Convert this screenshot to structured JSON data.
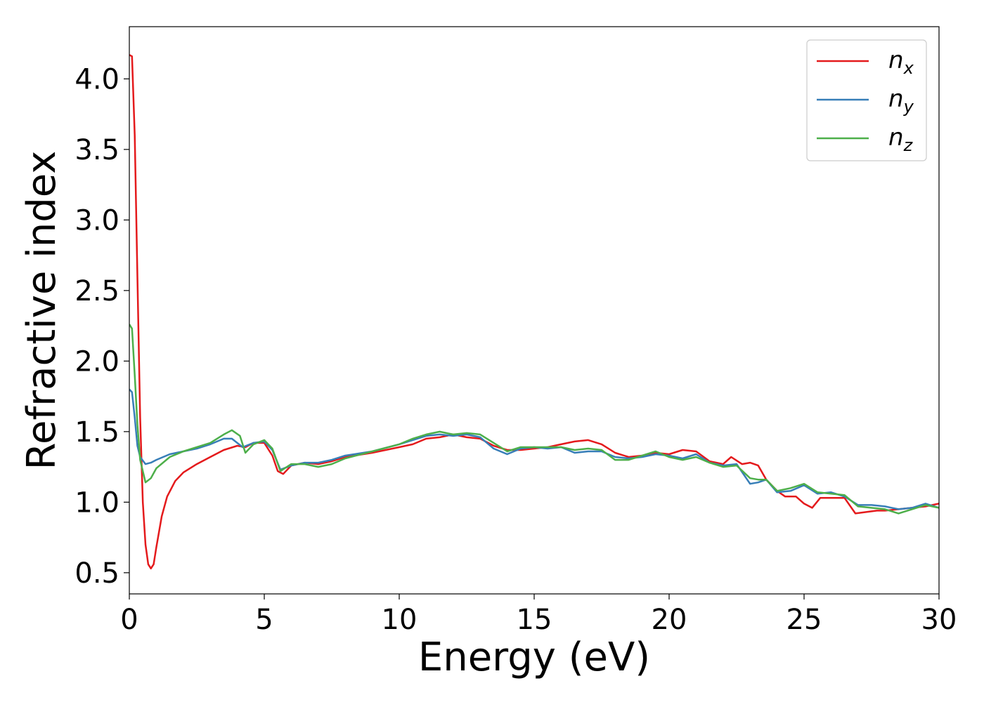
{
  "chart_data": {
    "type": "line",
    "title": "",
    "xlabel": "Energy (eV)",
    "ylabel": "Refractive index",
    "xlim": [
      0,
      30
    ],
    "ylim": [
      0.35,
      4.37
    ],
    "xticks": [
      0,
      5,
      10,
      15,
      20,
      25,
      30
    ],
    "yticks": [
      0.5,
      1.0,
      1.5,
      2.0,
      2.5,
      3.0,
      3.5,
      4.0
    ],
    "grid": false,
    "legend_position": "top-right",
    "series": [
      {
        "name": "n",
        "subscript": "x",
        "color": "#e41a1c",
        "points": [
          [
            0,
            4.17
          ],
          [
            0.1,
            4.16
          ],
          [
            0.2,
            3.6
          ],
          [
            0.3,
            2.6
          ],
          [
            0.4,
            1.6
          ],
          [
            0.5,
            1.0
          ],
          [
            0.6,
            0.7
          ],
          [
            0.7,
            0.56
          ],
          [
            0.8,
            0.53
          ],
          [
            0.9,
            0.56
          ],
          [
            1.0,
            0.68
          ],
          [
            1.2,
            0.9
          ],
          [
            1.4,
            1.04
          ],
          [
            1.7,
            1.15
          ],
          [
            2.0,
            1.21
          ],
          [
            2.5,
            1.27
          ],
          [
            3.0,
            1.32
          ],
          [
            3.5,
            1.37
          ],
          [
            4.0,
            1.4
          ],
          [
            4.3,
            1.39
          ],
          [
            4.6,
            1.42
          ],
          [
            5.0,
            1.42
          ],
          [
            5.3,
            1.33
          ],
          [
            5.5,
            1.22
          ],
          [
            5.7,
            1.2
          ],
          [
            6.0,
            1.26
          ],
          [
            6.5,
            1.28
          ],
          [
            7.0,
            1.27
          ],
          [
            7.5,
            1.29
          ],
          [
            8.0,
            1.32
          ],
          [
            9.0,
            1.35
          ],
          [
            10.0,
            1.39
          ],
          [
            10.5,
            1.41
          ],
          [
            11.0,
            1.45
          ],
          [
            11.5,
            1.46
          ],
          [
            12.0,
            1.48
          ],
          [
            12.5,
            1.46
          ],
          [
            13.0,
            1.45
          ],
          [
            13.5,
            1.4
          ],
          [
            14.0,
            1.37
          ],
          [
            14.5,
            1.37
          ],
          [
            15.0,
            1.38
          ],
          [
            15.5,
            1.39
          ],
          [
            16.0,
            1.41
          ],
          [
            16.5,
            1.43
          ],
          [
            17.0,
            1.44
          ],
          [
            17.5,
            1.41
          ],
          [
            18.0,
            1.35
          ],
          [
            18.5,
            1.32
          ],
          [
            19.0,
            1.33
          ],
          [
            19.5,
            1.35
          ],
          [
            20.0,
            1.34
          ],
          [
            20.5,
            1.37
          ],
          [
            21.0,
            1.36
          ],
          [
            21.5,
            1.29
          ],
          [
            22.0,
            1.27
          ],
          [
            22.3,
            1.32
          ],
          [
            22.7,
            1.27
          ],
          [
            23.0,
            1.28
          ],
          [
            23.3,
            1.26
          ],
          [
            23.6,
            1.16
          ],
          [
            24.0,
            1.08
          ],
          [
            24.3,
            1.04
          ],
          [
            24.7,
            1.04
          ],
          [
            25.0,
            0.99
          ],
          [
            25.3,
            0.96
          ],
          [
            25.6,
            1.03
          ],
          [
            26.0,
            1.03
          ],
          [
            26.5,
            1.03
          ],
          [
            26.9,
            0.92
          ],
          [
            27.3,
            0.93
          ],
          [
            27.7,
            0.94
          ],
          [
            28.0,
            0.94
          ],
          [
            28.5,
            0.95
          ],
          [
            29.0,
            0.96
          ],
          [
            29.5,
            0.97
          ],
          [
            30.0,
            0.99
          ]
        ]
      },
      {
        "name": "n",
        "subscript": "y",
        "color": "#377eb8",
        "points": [
          [
            0,
            1.8
          ],
          [
            0.1,
            1.78
          ],
          [
            0.2,
            1.6
          ],
          [
            0.3,
            1.4
          ],
          [
            0.4,
            1.32
          ],
          [
            0.6,
            1.27
          ],
          [
            0.8,
            1.28
          ],
          [
            1.0,
            1.3
          ],
          [
            1.5,
            1.34
          ],
          [
            2.0,
            1.36
          ],
          [
            2.5,
            1.38
          ],
          [
            3.0,
            1.41
          ],
          [
            3.5,
            1.45
          ],
          [
            3.8,
            1.45
          ],
          [
            4.2,
            1.39
          ],
          [
            4.6,
            1.42
          ],
          [
            5.0,
            1.43
          ],
          [
            5.3,
            1.37
          ],
          [
            5.6,
            1.23
          ],
          [
            6.0,
            1.26
          ],
          [
            6.5,
            1.28
          ],
          [
            7.0,
            1.28
          ],
          [
            7.5,
            1.3
          ],
          [
            8.0,
            1.33
          ],
          [
            9.0,
            1.36
          ],
          [
            10.0,
            1.41
          ],
          [
            10.5,
            1.44
          ],
          [
            11.0,
            1.47
          ],
          [
            11.5,
            1.48
          ],
          [
            12.0,
            1.47
          ],
          [
            12.5,
            1.48
          ],
          [
            13.0,
            1.46
          ],
          [
            13.5,
            1.38
          ],
          [
            14.0,
            1.34
          ],
          [
            14.5,
            1.38
          ],
          [
            15.0,
            1.39
          ],
          [
            15.5,
            1.38
          ],
          [
            16.0,
            1.39
          ],
          [
            16.5,
            1.35
          ],
          [
            17.0,
            1.36
          ],
          [
            17.5,
            1.36
          ],
          [
            18.0,
            1.32
          ],
          [
            18.5,
            1.31
          ],
          [
            19.0,
            1.32
          ],
          [
            19.5,
            1.34
          ],
          [
            20.0,
            1.33
          ],
          [
            20.5,
            1.31
          ],
          [
            21.0,
            1.34
          ],
          [
            21.5,
            1.28
          ],
          [
            22.0,
            1.26
          ],
          [
            22.5,
            1.27
          ],
          [
            23.0,
            1.13
          ],
          [
            23.3,
            1.14
          ],
          [
            23.6,
            1.16
          ],
          [
            24.0,
            1.07
          ],
          [
            24.5,
            1.08
          ],
          [
            25.0,
            1.12
          ],
          [
            25.5,
            1.06
          ],
          [
            26.0,
            1.07
          ],
          [
            26.5,
            1.04
          ],
          [
            27.0,
            0.98
          ],
          [
            27.5,
            0.98
          ],
          [
            28.0,
            0.97
          ],
          [
            28.5,
            0.95
          ],
          [
            29.0,
            0.96
          ],
          [
            29.5,
            0.99
          ],
          [
            30.0,
            0.96
          ]
        ]
      },
      {
        "name": "n",
        "subscript": "z",
        "color": "#4daf4a",
        "points": [
          [
            0,
            2.26
          ],
          [
            0.1,
            2.23
          ],
          [
            0.2,
            1.9
          ],
          [
            0.3,
            1.55
          ],
          [
            0.4,
            1.3
          ],
          [
            0.6,
            1.14
          ],
          [
            0.8,
            1.17
          ],
          [
            1.0,
            1.24
          ],
          [
            1.5,
            1.32
          ],
          [
            2.0,
            1.36
          ],
          [
            2.5,
            1.39
          ],
          [
            3.0,
            1.42
          ],
          [
            3.5,
            1.48
          ],
          [
            3.8,
            1.51
          ],
          [
            4.1,
            1.47
          ],
          [
            4.3,
            1.35
          ],
          [
            4.6,
            1.41
          ],
          [
            5.0,
            1.44
          ],
          [
            5.3,
            1.38
          ],
          [
            5.6,
            1.22
          ],
          [
            6.0,
            1.27
          ],
          [
            6.5,
            1.27
          ],
          [
            7.0,
            1.25
          ],
          [
            7.5,
            1.27
          ],
          [
            8.0,
            1.31
          ],
          [
            9.0,
            1.36
          ],
          [
            10.0,
            1.41
          ],
          [
            10.5,
            1.45
          ],
          [
            11.0,
            1.48
          ],
          [
            11.5,
            1.5
          ],
          [
            12.0,
            1.48
          ],
          [
            12.5,
            1.49
          ],
          [
            13.0,
            1.48
          ],
          [
            13.5,
            1.42
          ],
          [
            14.0,
            1.36
          ],
          [
            14.5,
            1.39
          ],
          [
            15.0,
            1.39
          ],
          [
            15.5,
            1.39
          ],
          [
            16.0,
            1.39
          ],
          [
            16.5,
            1.37
          ],
          [
            17.0,
            1.38
          ],
          [
            17.5,
            1.37
          ],
          [
            18.0,
            1.3
          ],
          [
            18.5,
            1.3
          ],
          [
            19.0,
            1.33
          ],
          [
            19.5,
            1.36
          ],
          [
            20.0,
            1.32
          ],
          [
            20.5,
            1.3
          ],
          [
            21.0,
            1.32
          ],
          [
            21.5,
            1.28
          ],
          [
            22.0,
            1.25
          ],
          [
            22.5,
            1.26
          ],
          [
            23.0,
            1.17
          ],
          [
            23.3,
            1.16
          ],
          [
            23.6,
            1.16
          ],
          [
            24.0,
            1.08
          ],
          [
            24.5,
            1.1
          ],
          [
            25.0,
            1.13
          ],
          [
            25.5,
            1.07
          ],
          [
            26.0,
            1.06
          ],
          [
            26.5,
            1.05
          ],
          [
            27.0,
            0.97
          ],
          [
            27.5,
            0.96
          ],
          [
            28.0,
            0.95
          ],
          [
            28.5,
            0.92
          ],
          [
            29.0,
            0.95
          ],
          [
            29.5,
            0.98
          ],
          [
            30.0,
            0.96
          ]
        ]
      }
    ]
  }
}
